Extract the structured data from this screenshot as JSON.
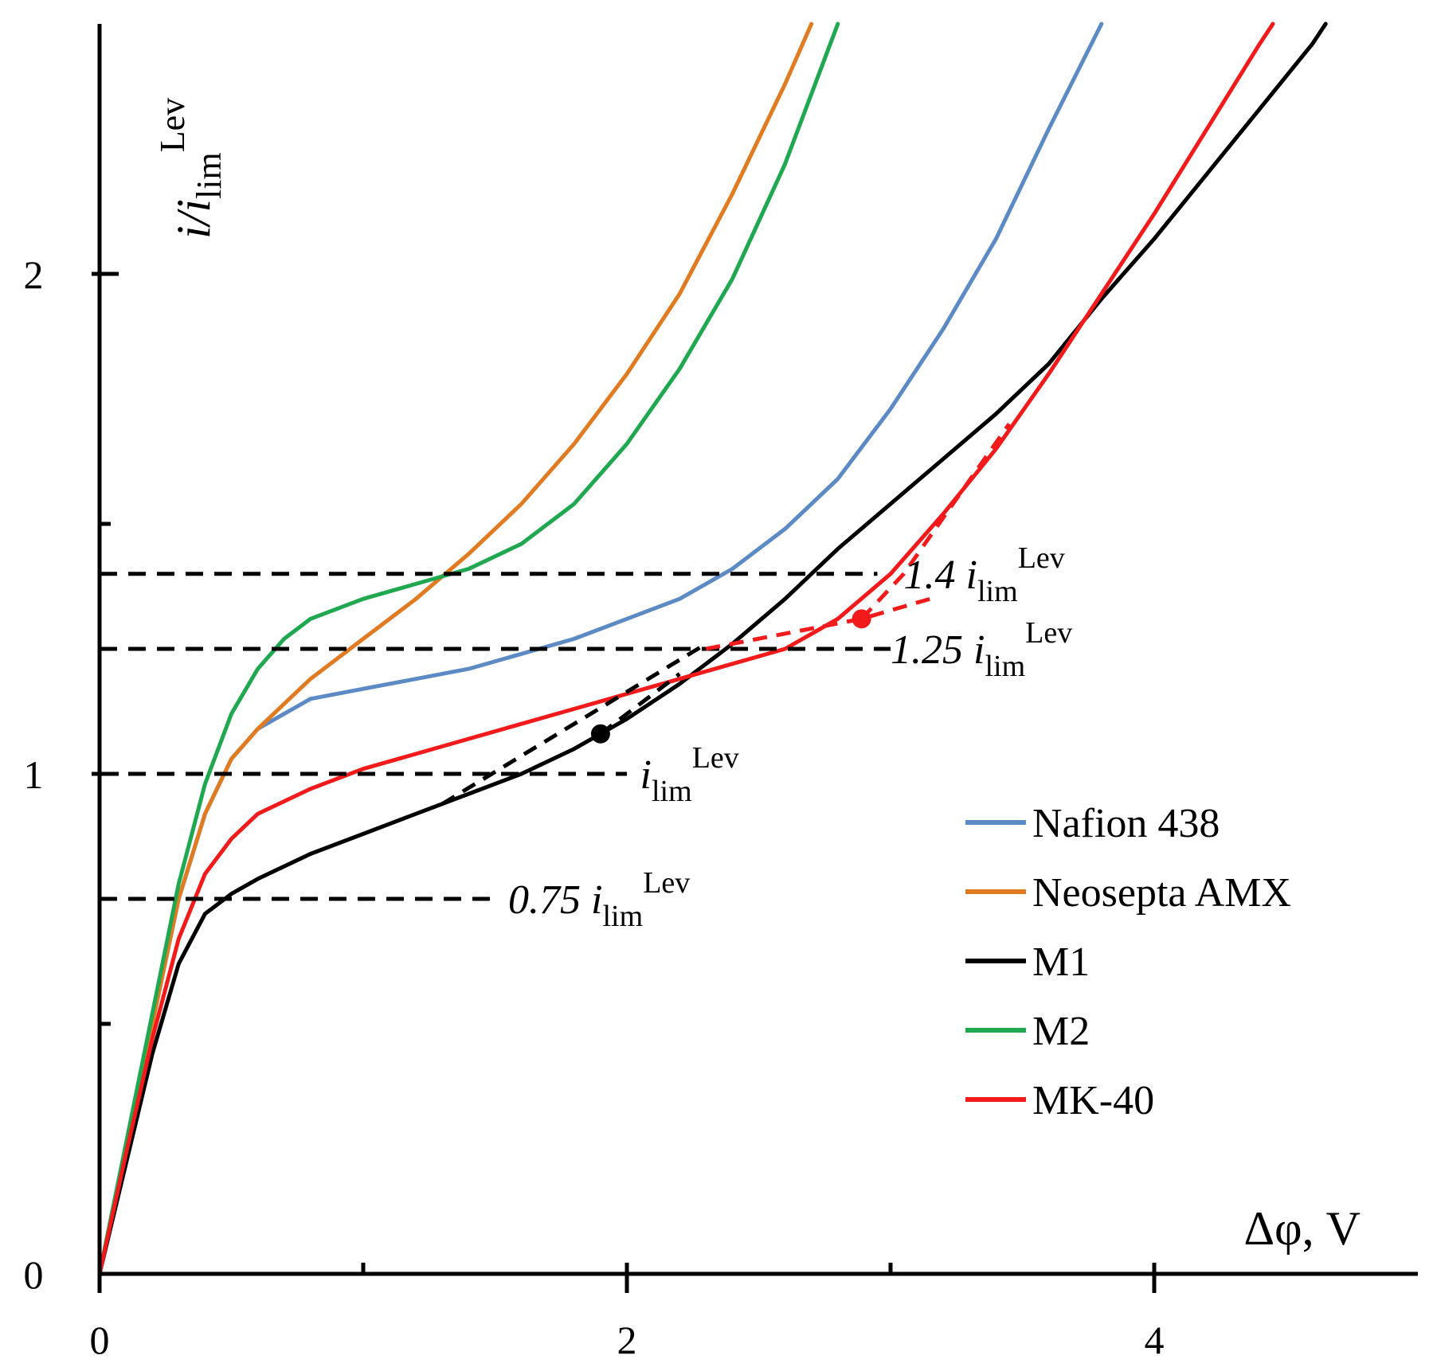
{
  "chart_data": {
    "type": "line",
    "title": "",
    "xlabel": "Δφ, V",
    "ylabel": {
      "base": "i/i",
      "sub": "lim",
      "sup": "Lev"
    },
    "xlim": [
      0,
      5
    ],
    "ylim": [
      0,
      2.5
    ],
    "x_ticks": {
      "major": [
        0,
        2,
        4
      ],
      "minor": [
        1,
        3
      ]
    },
    "y_ticks": {
      "major": [
        0,
        1,
        2
      ],
      "minor": [
        0.5,
        1.5
      ]
    },
    "grid": false,
    "legend_position": "bottom-right",
    "series": [
      {
        "name": "Nafion 438",
        "color": "#5B8AC5",
        "points": [
          [
            0,
            0
          ],
          [
            0.1,
            0.25
          ],
          [
            0.2,
            0.5
          ],
          [
            0.3,
            0.75
          ],
          [
            0.4,
            0.92
          ],
          [
            0.5,
            1.03
          ],
          [
            0.6,
            1.09
          ],
          [
            0.7,
            1.12
          ],
          [
            0.8,
            1.15
          ],
          [
            1.0,
            1.17
          ],
          [
            1.2,
            1.19
          ],
          [
            1.4,
            1.21
          ],
          [
            1.6,
            1.24
          ],
          [
            1.8,
            1.27
          ],
          [
            2.0,
            1.31
          ],
          [
            2.2,
            1.35
          ],
          [
            2.4,
            1.41
          ],
          [
            2.6,
            1.49
          ],
          [
            2.8,
            1.59
          ],
          [
            3.0,
            1.73
          ],
          [
            3.2,
            1.89
          ],
          [
            3.4,
            2.07
          ],
          [
            3.6,
            2.29
          ],
          [
            3.8,
            2.5
          ]
        ]
      },
      {
        "name": "Neosepta AMX",
        "color": "#E07B22",
        "points": [
          [
            0,
            0
          ],
          [
            0.1,
            0.25
          ],
          [
            0.2,
            0.5
          ],
          [
            0.3,
            0.75
          ],
          [
            0.4,
            0.92
          ],
          [
            0.5,
            1.03
          ],
          [
            0.6,
            1.09
          ],
          [
            0.7,
            1.14
          ],
          [
            0.8,
            1.19
          ],
          [
            1.0,
            1.27
          ],
          [
            1.2,
            1.35
          ],
          [
            1.4,
            1.44
          ],
          [
            1.6,
            1.54
          ],
          [
            1.8,
            1.66
          ],
          [
            2.0,
            1.8
          ],
          [
            2.2,
            1.96
          ],
          [
            2.4,
            2.16
          ],
          [
            2.6,
            2.38
          ],
          [
            2.7,
            2.5
          ]
        ]
      },
      {
        "name": "M1",
        "color": "#000000",
        "points": [
          [
            0,
            0
          ],
          [
            0.1,
            0.22
          ],
          [
            0.2,
            0.44
          ],
          [
            0.3,
            0.62
          ],
          [
            0.4,
            0.72
          ],
          [
            0.5,
            0.76
          ],
          [
            0.6,
            0.79
          ],
          [
            0.8,
            0.84
          ],
          [
            1.0,
            0.88
          ],
          [
            1.2,
            0.92
          ],
          [
            1.4,
            0.96
          ],
          [
            1.6,
            1.0
          ],
          [
            1.8,
            1.05
          ],
          [
            2.0,
            1.11
          ],
          [
            2.2,
            1.18
          ],
          [
            2.4,
            1.26
          ],
          [
            2.6,
            1.35
          ],
          [
            2.8,
            1.45
          ],
          [
            3.0,
            1.54
          ],
          [
            3.2,
            1.63
          ],
          [
            3.4,
            1.72
          ],
          [
            3.6,
            1.82
          ],
          [
            3.8,
            1.95
          ],
          [
            4.0,
            2.07
          ],
          [
            4.2,
            2.2
          ],
          [
            4.4,
            2.33
          ],
          [
            4.6,
            2.46
          ],
          [
            4.65,
            2.5
          ]
        ]
      },
      {
        "name": "M2",
        "color": "#1FA84F",
        "points": [
          [
            0,
            0
          ],
          [
            0.1,
            0.26
          ],
          [
            0.2,
            0.52
          ],
          [
            0.3,
            0.78
          ],
          [
            0.4,
            0.98
          ],
          [
            0.5,
            1.12
          ],
          [
            0.6,
            1.21
          ],
          [
            0.7,
            1.27
          ],
          [
            0.8,
            1.31
          ],
          [
            1.0,
            1.35
          ],
          [
            1.2,
            1.38
          ],
          [
            1.4,
            1.41
          ],
          [
            1.6,
            1.46
          ],
          [
            1.8,
            1.54
          ],
          [
            2.0,
            1.66
          ],
          [
            2.2,
            1.81
          ],
          [
            2.4,
            1.99
          ],
          [
            2.6,
            2.22
          ],
          [
            2.8,
            2.5
          ]
        ]
      },
      {
        "name": "MK-40",
        "color": "#F21A1A",
        "points": [
          [
            0,
            0
          ],
          [
            0.1,
            0.24
          ],
          [
            0.2,
            0.47
          ],
          [
            0.3,
            0.67
          ],
          [
            0.4,
            0.8
          ],
          [
            0.5,
            0.87
          ],
          [
            0.6,
            0.92
          ],
          [
            0.8,
            0.97
          ],
          [
            1.0,
            1.01
          ],
          [
            1.2,
            1.04
          ],
          [
            1.4,
            1.07
          ],
          [
            1.6,
            1.1
          ],
          [
            1.8,
            1.13
          ],
          [
            2.0,
            1.16
          ],
          [
            2.2,
            1.19
          ],
          [
            2.4,
            1.22
          ],
          [
            2.6,
            1.25
          ],
          [
            2.8,
            1.31
          ],
          [
            3.0,
            1.4
          ],
          [
            3.2,
            1.52
          ],
          [
            3.4,
            1.65
          ],
          [
            3.6,
            1.8
          ],
          [
            3.8,
            1.96
          ],
          [
            4.0,
            2.12
          ],
          [
            4.2,
            2.29
          ],
          [
            4.4,
            2.46
          ],
          [
            4.45,
            2.5
          ]
        ]
      }
    ],
    "reference_lines": [
      {
        "y": 0.75,
        "x_end": 1.5,
        "label": "0.75",
        "label_x": 1.55
      },
      {
        "y": 1.0,
        "x_end": 2.0,
        "label": "",
        "label_x": 2.05
      },
      {
        "y": 1.25,
        "x_end": 3.0,
        "label": "1.25",
        "label_x": 3.0
      },
      {
        "y": 1.4,
        "x_end": 2.95,
        "label": "1.4",
        "label_x": 3.05
      }
    ],
    "tangent_lines": [
      {
        "color": "#000000",
        "points": [
          [
            1.3,
            0.94
          ],
          [
            2.3,
            1.26
          ]
        ]
      },
      {
        "color": "#000000",
        "points": [
          [
            1.9,
            1.08
          ],
          [
            2.2,
            1.2
          ]
        ]
      },
      {
        "color": "#F21A1A",
        "points": [
          [
            2.3,
            1.25
          ],
          [
            2.89,
            1.31
          ],
          [
            3.15,
            1.35
          ]
        ]
      },
      {
        "color": "#F21A1A",
        "points": [
          [
            2.89,
            1.31
          ],
          [
            3.05,
            1.4
          ],
          [
            3.45,
            1.7
          ]
        ]
      }
    ],
    "markers": [
      {
        "x": 1.9,
        "y": 1.08,
        "color": "#000000"
      },
      {
        "x": 2.89,
        "y": 1.31,
        "color": "#F21A1A"
      }
    ],
    "annotation_base": {
      "i": "i",
      "sub": "lim",
      "sup": "Lev"
    }
  }
}
